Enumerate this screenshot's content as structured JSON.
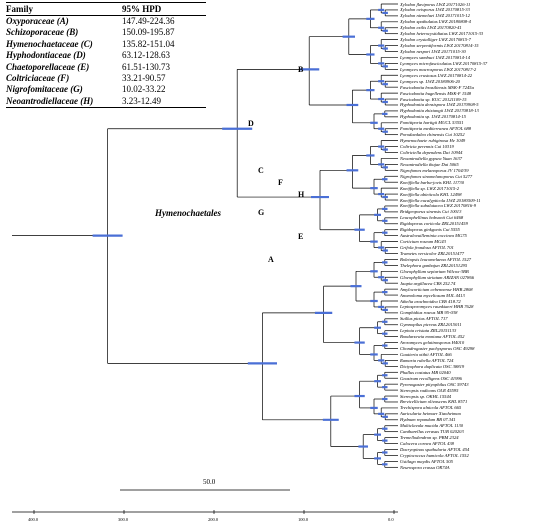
{
  "legend": {
    "header_family": "Family",
    "header_hpd": "95% HPD",
    "rows": [
      {
        "family": "Oxyporaceae (A)",
        "hpd": "147.49-224.36"
      },
      {
        "family": "Schizoporaceae (B)",
        "hpd": "150.09-195.87"
      },
      {
        "family": "Hymenochaetaceae (C)",
        "hpd": "135.82-151.04"
      },
      {
        "family": "Hyphodontiaceae (D)",
        "hpd": "63.12-128.63"
      },
      {
        "family": "Chaetoporellaceae (E)",
        "hpd": "61.51-130.73"
      },
      {
        "family": "Coltriciaceae (F)",
        "hpd": "33.21-90.57"
      },
      {
        "family": "Nigrofomitaceae (G)",
        "hpd": "10.02-33.22"
      },
      {
        "family": "Neoantrodiellaceae (H)",
        "hpd": "3.23-12.49"
      }
    ]
  },
  "order_label": "Hymenochaetales",
  "clade_labels": [
    {
      "label": "A",
      "taxon_index": 44
    },
    {
      "label": "B",
      "taxon_index": 12
    },
    {
      "label": "C",
      "taxon_index": 29
    },
    {
      "label": "D",
      "taxon_index": 21
    },
    {
      "label": "E",
      "taxon_index": 40
    },
    {
      "label": "F",
      "taxon_index": 31
    },
    {
      "label": "G",
      "taxon_index": 36
    },
    {
      "label": "H",
      "taxon_index": 33
    }
  ],
  "taxa": [
    "Xylodon flaviporus LWZ 20171026-11",
    "Xylodon ovisporus LWZ 20170815-33",
    "Xylodon niemelaei LWZ 20171015-12",
    "Xylodon spathulatus LWZ 20180808-4",
    "Xylodon exilis LWZ 20170820-41",
    "Xylodon heterocystidiatus LWZ 20171015-33",
    "Xylodon crystalliger LWZ 20170815-7",
    "Xylodon serpentiformis LWZ 20170814-15",
    "Xylodon nespori LWZ 20171015-30",
    "Lyomyces sambuci LWZ 20170814-14",
    "Lyomyces microfasciculatus LWZ 20170815-37",
    "Lyomyces macrosporus LWZ 20170817-2",
    "Lyomyces crustosus LWZ 20170814-22",
    "Lyomyces sp. LWZ 20180906-20",
    "Fasciodontia brasiliensis MSK-F 7245a",
    "Fasciodontia bugellensis MSK-F 1548",
    "Fasciodontia sp. KUC 20121109-15",
    "Hyphodontia densispora LWZ 20170908-5",
    "Hyphodontia zhixiangii LWZ 20170818-13",
    "Hyphodontia sp. LWZ 20170814-15",
    "Fomitiporia hartigii MUCL 53551",
    "Fomitiporia mediterranea AFTOL 688",
    "Porodaedalea chinensis Cui 10252",
    "Hymenochaete rubiginosa He 1049",
    "Coltricia perennis Cui 10319",
    "Coltriciella dependens Dai 10944",
    "Neoantrodiella gypsea Yuan 1637",
    "Neoantrodiella thujae Dai 5065",
    "Nigrofomes melanoporus JV 1704/39",
    "Nigrofomes sinomelanoporus Cui 5277",
    "Kneiffiella barba-jovis KHL 11730",
    "Kneiffiella sp. LWZ 20171015-2",
    "Kneiffiella abieticola KHL 12498",
    "Kneiffiella eucalypticola LWZ 20180509-11",
    "Kneiffiella subalutacea LWZ 20170816-9",
    "Bridgeoporus sinensis Cui 10013",
    "Leucophellinus hobsonii Cui 6468",
    "Rigidoporus corticola ZRL20151459",
    "Rigidoporus ginkgonis Cui 5555",
    "Australovuilleminia coccinea MG75",
    "Corticium roseum MG43",
    "Grifola frondosa AFTOL 701",
    "Trametes versicolor ZRL20151477",
    "Boletopsis leucomelaena AFTOL 1527",
    "Thelephora ganbajun ZRL20151295",
    "Gloeophyllum sepiarium Wilcox-3BB",
    "Gloeophyllum striatum ARIZAN 027866",
    "Jaapia argillacea CBS 252.74",
    "Amylocorticium cebennense HHB 2808",
    "Anomoloma myceliosum MJL 4413",
    "Athelia arachnoidea CBS 418.72",
    "Leptosporomyces raunkiaeri HHB 7628",
    "Gomphidius roseus MB 95-038",
    "Suillus pictus AFTOL 717",
    "Gymnopilus picreus ZRL2015011",
    "Lepiota cristata ZRL20151133",
    "Bondarzewia montana AFTOL 452",
    "Aroramyces gelatinosporus H4010",
    "Chondrogaster pachysporus OSC 49298",
    "Gautieria otthii AFTOL 466",
    "Ramaria rubella AFTOL 724",
    "Dictyophora duplicata OSC 38819",
    "Phallus costatus MB 02040",
    "Geastrum recolligens OSC 41996",
    "Pyrenogaster pityophilus OSC 59743",
    "Stereopsis radicans OLR 45595",
    "Stereopsis sp. OKHL 15544",
    "Brevicellicium olivascens KHL 8571",
    "Trechispora alnicola AFTOL 665",
    "Auricularia heimuer Xiaoheimao",
    "Hydnum repandum BB 07.341",
    "Multiclavula mucida AFTOL 1130",
    "Cantharellus cerasus TUB 020203",
    "Tremellodendron sp. PBM 2324",
    "Calocera cornea AFTOL 438",
    "Dacryopinax spathularia AFTOL 454",
    "Cryptococcus humicola AFTOL 1552",
    "Ustilago maydis AFTOL 505",
    "Neurospora crassa OR74A"
  ],
  "scale_bar_value": "50.0",
  "axis_ticks": [
    "400.0",
    "300.0",
    "200.0",
    "100.0",
    "0.0"
  ]
}
